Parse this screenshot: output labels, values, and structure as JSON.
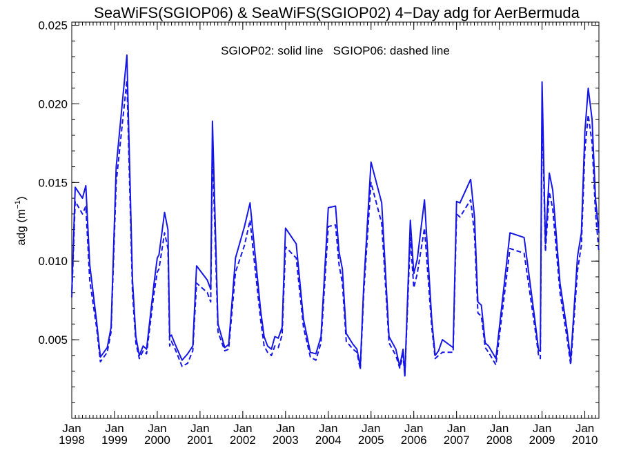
{
  "chart_data": {
    "type": "line",
    "title": "SeaWiFS(SGIOP06) & SeaWiFS(SGIOP02) 4−Day adg for AerBermuda",
    "annotation": "SGIOP02: solid line   SGIOP06: dashed line",
    "ylabel": "adg (m",
    "ylabel_sup": "−1",
    "ylabel_close": ")",
    "xlim": [
      1998.0,
      2010.33
    ],
    "ylim": [
      0.0,
      0.0252
    ],
    "y_ticks": [
      0.005,
      0.01,
      0.015,
      0.02,
      0.025
    ],
    "y_tick_labels": [
      "0.005",
      "0.010",
      "0.015",
      "0.020",
      "0.025"
    ],
    "x_ticks": [
      1998,
      1999,
      2000,
      2001,
      2002,
      2003,
      2004,
      2005,
      2006,
      2007,
      2008,
      2009,
      2010
    ],
    "x_tick_labels_top": [
      "Jan",
      "Jan",
      "Jan",
      "Jan",
      "Jan",
      "Jan",
      "Jan",
      "Jan",
      "Jan",
      "Jan",
      "Jan",
      "Jan",
      "Jan"
    ],
    "x_tick_labels_bottom": [
      "1998",
      "1999",
      "2000",
      "2001",
      "2002",
      "2003",
      "2004",
      "2005",
      "2006",
      "2007",
      "2008",
      "2009",
      "2010"
    ],
    "line_color": "#1515e6",
    "grid": false,
    "series": [
      {
        "name": "SGIOP02",
        "style": "solid",
        "x": [
          1998.0,
          1998.08,
          1998.25,
          1998.33,
          1998.42,
          1998.58,
          1998.67,
          1998.83,
          1998.92,
          1999.04,
          1999.29,
          1999.42,
          1999.5,
          1999.58,
          1999.67,
          1999.75,
          1999.92,
          2000.0,
          2000.04,
          2000.17,
          2000.25,
          2000.29,
          2000.33,
          2000.42,
          2000.58,
          2000.71,
          2000.83,
          2000.92,
          2001.17,
          2001.25,
          2001.29,
          2001.42,
          2001.58,
          2001.67,
          2001.83,
          2002.04,
          2002.17,
          2002.25,
          2002.42,
          2002.5,
          2002.58,
          2002.67,
          2002.75,
          2002.83,
          2002.92,
          2003.0,
          2003.25,
          2003.42,
          2003.58,
          2003.71,
          2003.83,
          2004.0,
          2004.17,
          2004.25,
          2004.33,
          2004.42,
          2004.58,
          2004.67,
          2004.75,
          2004.83,
          2005.0,
          2005.25,
          2005.42,
          2005.58,
          2005.67,
          2005.75,
          2005.79,
          2005.92,
          2006.0,
          2006.08,
          2006.25,
          2006.42,
          2006.5,
          2006.58,
          2006.67,
          2006.92,
          2007.0,
          2007.08,
          2007.33,
          2007.42,
          2007.5,
          2007.58,
          2007.67,
          2007.75,
          2007.92,
          2008.25,
          2008.58,
          2008.83,
          2008.92,
          2008.96,
          2009.0,
          2009.08,
          2009.17,
          2009.25,
          2009.42,
          2009.58,
          2009.67,
          2009.83,
          2009.92,
          2010.0,
          2010.08,
          2010.17,
          2010.25,
          2010.33
        ],
        "y": [
          0.008,
          0.0147,
          0.014,
          0.0148,
          0.0098,
          0.0062,
          0.0039,
          0.0045,
          0.0058,
          0.016,
          0.0231,
          0.0088,
          0.0052,
          0.004,
          0.0046,
          0.0044,
          0.0085,
          0.0102,
          0.0104,
          0.0131,
          0.012,
          0.0052,
          0.0053,
          0.0047,
          0.0037,
          0.0041,
          0.0046,
          0.0097,
          0.0088,
          0.0082,
          0.0189,
          0.006,
          0.0045,
          0.0047,
          0.0102,
          0.0122,
          0.0137,
          0.0115,
          0.0068,
          0.0052,
          0.0046,
          0.0044,
          0.0052,
          0.0051,
          0.0058,
          0.0121,
          0.0111,
          0.0063,
          0.0042,
          0.0041,
          0.0052,
          0.0134,
          0.0135,
          0.0106,
          0.0095,
          0.0054,
          0.0047,
          0.0044,
          0.0033,
          0.0085,
          0.0163,
          0.0137,
          0.0052,
          0.0044,
          0.0033,
          0.0044,
          0.0027,
          0.0126,
          0.0092,
          0.0101,
          0.0139,
          0.0063,
          0.004,
          0.0043,
          0.005,
          0.0045,
          0.0138,
          0.0137,
          0.0152,
          0.0128,
          0.0074,
          0.0072,
          0.0048,
          0.0046,
          0.0038,
          0.0118,
          0.0115,
          0.0063,
          0.0043,
          0.0043,
          0.0214,
          0.0111,
          0.0156,
          0.0145,
          0.0086,
          0.0057,
          0.0037,
          0.0103,
          0.0118,
          0.0182,
          0.021,
          0.019,
          0.014,
          0.0118
        ]
      },
      {
        "name": "SGIOP06",
        "style": "dashed",
        "x": [
          1998.0,
          1998.08,
          1998.25,
          1998.33,
          1998.42,
          1998.58,
          1998.67,
          1998.83,
          1998.92,
          1999.04,
          1999.29,
          1999.42,
          1999.5,
          1999.58,
          1999.67,
          1999.75,
          1999.92,
          2000.0,
          2000.04,
          2000.17,
          2000.25,
          2000.29,
          2000.33,
          2000.42,
          2000.58,
          2000.71,
          2000.83,
          2000.92,
          2001.17,
          2001.25,
          2001.29,
          2001.42,
          2001.58,
          2001.67,
          2001.83,
          2002.04,
          2002.17,
          2002.25,
          2002.42,
          2002.5,
          2002.58,
          2002.67,
          2002.75,
          2002.83,
          2002.92,
          2003.0,
          2003.25,
          2003.42,
          2003.58,
          2003.71,
          2003.83,
          2004.0,
          2004.17,
          2004.25,
          2004.33,
          2004.42,
          2004.58,
          2004.67,
          2004.75,
          2004.83,
          2005.0,
          2005.25,
          2005.42,
          2005.58,
          2005.67,
          2005.75,
          2005.79,
          2005.92,
          2006.0,
          2006.08,
          2006.25,
          2006.42,
          2006.5,
          2006.58,
          2006.67,
          2006.92,
          2007.0,
          2007.08,
          2007.33,
          2007.42,
          2007.5,
          2007.58,
          2007.67,
          2007.75,
          2007.92,
          2008.25,
          2008.58,
          2008.83,
          2008.92,
          2008.96,
          2009.0,
          2009.08,
          2009.17,
          2009.25,
          2009.42,
          2009.58,
          2009.67,
          2009.83,
          2009.92,
          2010.0,
          2010.08,
          2010.17,
          2010.25,
          2010.33
        ],
        "y": [
          0.0077,
          0.0138,
          0.013,
          0.0135,
          0.0088,
          0.0058,
          0.0036,
          0.0042,
          0.0055,
          0.015,
          0.0215,
          0.008,
          0.0048,
          0.0038,
          0.0043,
          0.0041,
          0.0079,
          0.0093,
          0.0095,
          0.0118,
          0.0108,
          0.0046,
          0.0049,
          0.0044,
          0.0033,
          0.0035,
          0.0043,
          0.0086,
          0.008,
          0.0074,
          0.0171,
          0.0055,
          0.0043,
          0.0044,
          0.0093,
          0.011,
          0.0126,
          0.0105,
          0.0062,
          0.0046,
          0.0042,
          0.004,
          0.0046,
          0.0045,
          0.0053,
          0.0109,
          0.0102,
          0.0058,
          0.0039,
          0.0037,
          0.0048,
          0.0122,
          0.0123,
          0.0098,
          0.0086,
          0.0049,
          0.0044,
          0.0042,
          0.0031,
          0.008,
          0.015,
          0.0124,
          0.0048,
          0.004,
          0.0032,
          0.004,
          0.0027,
          0.0115,
          0.0083,
          0.0092,
          0.0121,
          0.0058,
          0.0038,
          0.004,
          0.0042,
          0.0042,
          0.013,
          0.0128,
          0.0139,
          0.0117,
          0.0067,
          0.0065,
          0.0045,
          0.0042,
          0.0034,
          0.0108,
          0.0105,
          0.0058,
          0.004,
          0.0038,
          0.0197,
          0.0106,
          0.0144,
          0.0133,
          0.008,
          0.0052,
          0.0034,
          0.0094,
          0.011,
          0.017,
          0.0193,
          0.0175,
          0.0131,
          0.0106
        ]
      }
    ]
  }
}
